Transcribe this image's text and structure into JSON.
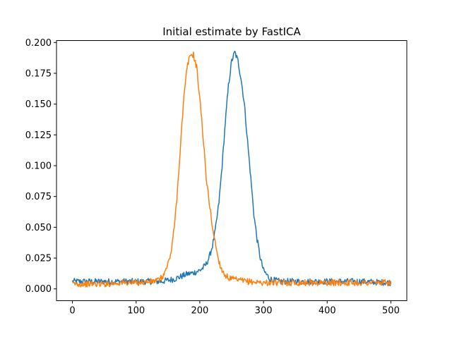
{
  "chart_data": {
    "type": "line",
    "title": "Initial estimate by FastICA",
    "xlabel": "",
    "ylabel": "",
    "xlim": [
      -25,
      525
    ],
    "ylim": [
      -0.0096,
      0.2016
    ],
    "x_ticks": [
      0,
      100,
      200,
      300,
      400,
      500
    ],
    "x_tick_labels": [
      "0",
      "100",
      "200",
      "300",
      "400",
      "500"
    ],
    "y_ticks": [
      0.0,
      0.025,
      0.05,
      0.075,
      0.1,
      0.125,
      0.15,
      0.175,
      0.2
    ],
    "y_tick_labels": [
      "0.000",
      "0.025",
      "0.050",
      "0.075",
      "0.100",
      "0.125",
      "0.150",
      "0.175",
      "0.200"
    ],
    "grid": false,
    "legend": "none",
    "series": [
      {
        "color": "#1f77b4",
        "x": [
          0,
          25,
          50,
          75,
          100,
          125,
          140,
          150,
          160,
          170,
          180,
          190,
          200,
          205,
          210,
          215,
          220,
          225,
          230,
          235,
          240,
          245,
          250,
          255,
          260,
          265,
          270,
          275,
          280,
          285,
          290,
          295,
          300,
          310,
          325,
          350,
          400,
          450,
          500
        ],
        "y": [
          0.006,
          0.006,
          0.006,
          0.006,
          0.006,
          0.006,
          0.006,
          0.007,
          0.008,
          0.01,
          0.012,
          0.013,
          0.015,
          0.017,
          0.02,
          0.026,
          0.035,
          0.05,
          0.07,
          0.1,
          0.135,
          0.165,
          0.185,
          0.192,
          0.185,
          0.17,
          0.15,
          0.12,
          0.09,
          0.06,
          0.04,
          0.025,
          0.015,
          0.008,
          0.006,
          0.006,
          0.006,
          0.006,
          0.005
        ]
      },
      {
        "color": "#ff7f0e",
        "x": [
          0,
          25,
          50,
          75,
          100,
          125,
          135,
          140,
          145,
          150,
          155,
          160,
          165,
          170,
          175,
          180,
          185,
          190,
          195,
          200,
          205,
          210,
          215,
          220,
          225,
          230,
          235,
          240,
          245,
          250,
          260,
          275,
          300,
          350,
          400,
          450,
          500
        ],
        "y": [
          0.004,
          0.004,
          0.004,
          0.005,
          0.005,
          0.006,
          0.007,
          0.009,
          0.013,
          0.02,
          0.03,
          0.05,
          0.08,
          0.12,
          0.155,
          0.18,
          0.19,
          0.19,
          0.18,
          0.155,
          0.125,
          0.09,
          0.07,
          0.05,
          0.035,
          0.022,
          0.015,
          0.011,
          0.009,
          0.008,
          0.007,
          0.006,
          0.005,
          0.005,
          0.005,
          0.005,
          0.005
        ]
      }
    ]
  }
}
